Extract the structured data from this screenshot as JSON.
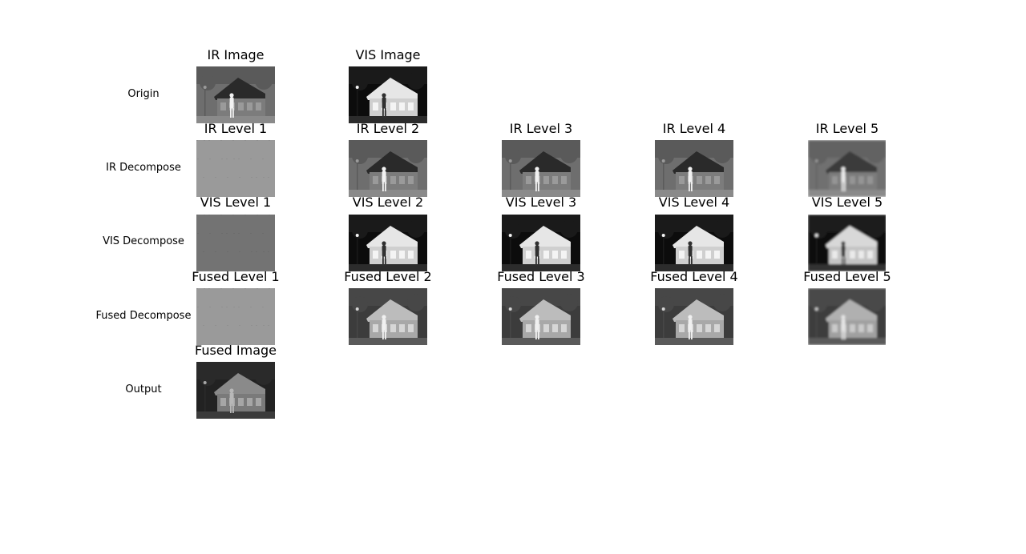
{
  "rows": [
    {
      "label": "Origin",
      "cells": [
        {
          "title": "IR Image",
          "image": "ir-original-image",
          "tone": "ir"
        },
        {
          "title": "VIS Image",
          "image": "vis-original-image",
          "tone": "vis"
        }
      ]
    },
    {
      "label": "IR Decompose",
      "cells": [
        {
          "title": "IR Level 1",
          "image": "ir-level-1-image",
          "tone": "flat-light"
        },
        {
          "title": "IR Level 2",
          "image": "ir-level-2-image",
          "tone": "ir"
        },
        {
          "title": "IR Level 3",
          "image": "ir-level-3-image",
          "tone": "ir"
        },
        {
          "title": "IR Level 4",
          "image": "ir-level-4-image",
          "tone": "ir"
        },
        {
          "title": "IR Level 5",
          "image": "ir-level-5-image",
          "tone": "ir-blur"
        }
      ]
    },
    {
      "label": "VIS Decompose",
      "cells": [
        {
          "title": "VIS Level 1",
          "image": "vis-level-1-image",
          "tone": "flat-mid"
        },
        {
          "title": "VIS Level 2",
          "image": "vis-level-2-image",
          "tone": "vis"
        },
        {
          "title": "VIS Level 3",
          "image": "vis-level-3-image",
          "tone": "vis"
        },
        {
          "title": "VIS Level 4",
          "image": "vis-level-4-image",
          "tone": "vis"
        },
        {
          "title": "VIS Level 5",
          "image": "vis-level-5-image",
          "tone": "vis-blur"
        }
      ]
    },
    {
      "label": "Fused Decompose",
      "cells": [
        {
          "title": "Fused Level 1",
          "image": "fused-level-1-image",
          "tone": "flat-light"
        },
        {
          "title": "Fused Level 2",
          "image": "fused-level-2-image",
          "tone": "fused"
        },
        {
          "title": "Fused Level 3",
          "image": "fused-level-3-image",
          "tone": "fused"
        },
        {
          "title": "Fused Level 4",
          "image": "fused-level-4-image",
          "tone": "fused"
        },
        {
          "title": "Fused Level 5",
          "image": "fused-level-5-image",
          "tone": "fused-blur"
        }
      ]
    },
    {
      "label": "Output",
      "cells": [
        {
          "title": "Fused Image",
          "image": "fused-output-image",
          "tone": "fused-dark"
        }
      ]
    }
  ]
}
